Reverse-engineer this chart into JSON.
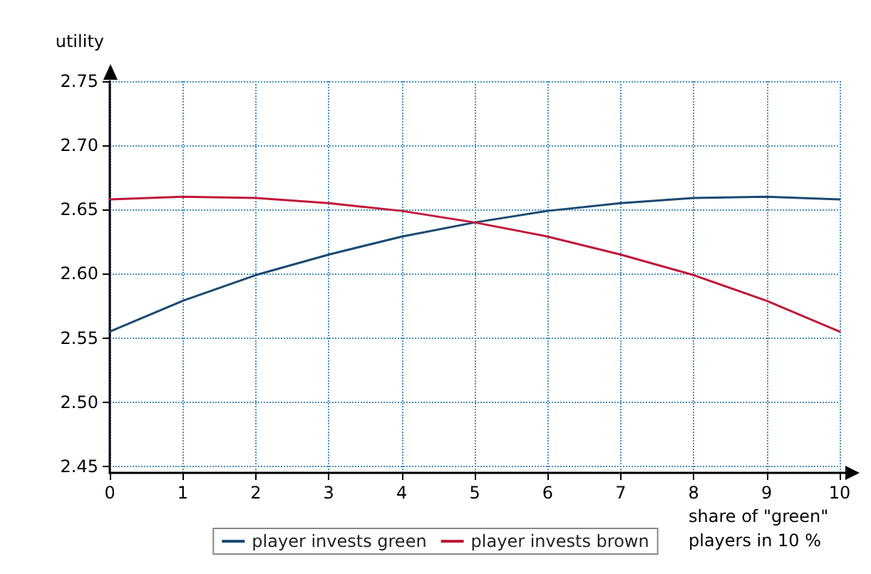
{
  "chart_data": {
    "type": "line",
    "xlabel": "share of \"green\" players in 10 %",
    "ylabel": "utility",
    "x": [
      0,
      1,
      2,
      3,
      4,
      5,
      6,
      7,
      8,
      9,
      10
    ],
    "series": [
      {
        "name": "player invests green",
        "color": "#1a4a72",
        "values": [
          2.555,
          2.579,
          2.599,
          2.615,
          2.629,
          2.64,
          2.649,
          2.655,
          2.659,
          2.66,
          2.658
        ]
      },
      {
        "name": "player invests brown",
        "color": "#c0183a",
        "values": [
          2.658,
          2.66,
          2.659,
          2.655,
          2.649,
          2.64,
          2.629,
          2.615,
          2.599,
          2.579,
          2.555
        ]
      }
    ],
    "xlim": [
      0,
      10
    ],
    "xticks": [
      0,
      1,
      2,
      3,
      4,
      5,
      6,
      7,
      8,
      9,
      10
    ],
    "ylim": [
      2.445,
      2.75
    ],
    "yticks": [
      2.45,
      {
        "value": 2.5,
        "label": "2.50"
      },
      2.55,
      {
        "value": 2.6,
        "label": "2.60"
      },
      2.65,
      {
        "value": 2.7,
        "label": "2.70"
      },
      2.75
    ],
    "grid": true,
    "legend": "bottom",
    "marker": "none",
    "line_style": "solid"
  }
}
